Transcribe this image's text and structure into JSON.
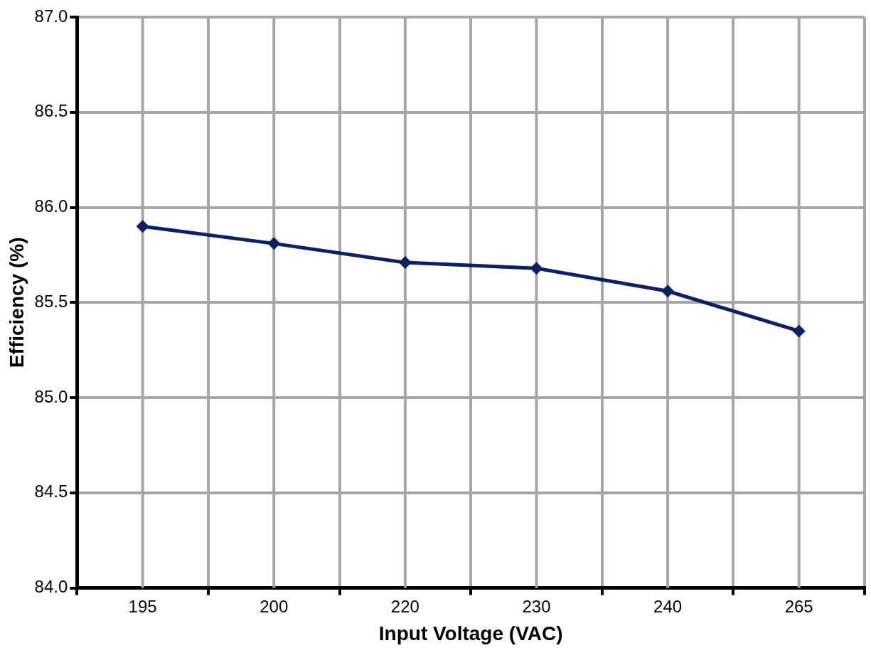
{
  "chart_data": {
    "type": "line",
    "xlabel": "Input Voltage (VAC)",
    "ylabel": "Efficiency (%)",
    "categories": [
      "195",
      "200",
      "220",
      "230",
      "240",
      "265"
    ],
    "series": [
      {
        "color": "#0b2160",
        "values": [
          85.9,
          85.81,
          85.71,
          85.68,
          85.56,
          85.35
        ]
      }
    ],
    "ylim": [
      84,
      87
    ],
    "yticks": [
      {
        "value": 84,
        "label": "84.0"
      },
      {
        "value": 84.5,
        "label": "84.5"
      },
      {
        "value": 85,
        "label": "85.0"
      },
      {
        "value": 85.5,
        "label": "85.5"
      },
      {
        "value": 86,
        "label": "86.0"
      },
      {
        "value": 86.5,
        "label": "86.5"
      },
      {
        "value": 87,
        "label": "87.0"
      }
    ],
    "grid": true,
    "marker": "diamond",
    "line_style": "solid",
    "legend": false
  }
}
